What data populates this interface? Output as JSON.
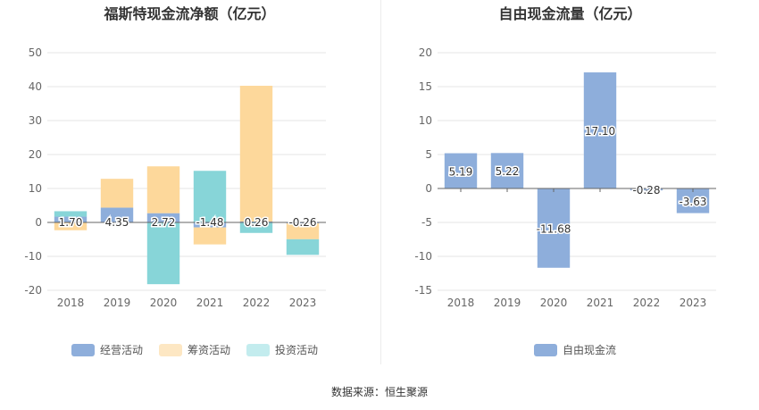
{
  "source_text": "数据来源：恒生聚源",
  "chart_data": [
    {
      "type": "bar",
      "stacked": true,
      "title": "福斯特现金流净额（亿元）",
      "categories": [
        "2018",
        "2019",
        "2020",
        "2021",
        "2022",
        "2023"
      ],
      "ylim": [
        -20,
        50
      ],
      "yticks": [
        -20,
        -10,
        0,
        10,
        20,
        30,
        40,
        50
      ],
      "grid": true,
      "legend": "bottom",
      "series": [
        {
          "name": "经营活动",
          "color": "#8eaedb",
          "values": [
            1.7,
            4.35,
            2.72,
            -1.48,
            0.26,
            -0.26
          ],
          "labels": [
            "1.70",
            "4.35",
            "2.72",
            "-1.48",
            "0.26",
            "-0.26"
          ]
        },
        {
          "name": "筹资活动",
          "color": "#fdd89b",
          "values": [
            -2.3,
            8.5,
            13.8,
            -5.0,
            40.0,
            -4.7
          ]
        },
        {
          "name": "投资活动",
          "color": "#87d5d8",
          "values": [
            1.6,
            0.0,
            -18.2,
            15.2,
            -3.1,
            -4.6
          ]
        }
      ]
    },
    {
      "type": "bar",
      "title": "自由现金流量（亿元）",
      "categories": [
        "2018",
        "2019",
        "2020",
        "2021",
        "2022",
        "2023"
      ],
      "ylim": [
        -15,
        20
      ],
      "yticks": [
        -15,
        -10,
        -5,
        0,
        5,
        10,
        15,
        20
      ],
      "grid": true,
      "legend": "bottom",
      "series": [
        {
          "name": "自由现金流",
          "color": "#8eaedb",
          "values": [
            5.19,
            5.22,
            -11.68,
            17.1,
            -0.28,
            -3.63
          ],
          "labels": [
            "5.19",
            "5.22",
            "-11.68",
            "17.10",
            "-0.28",
            "-3.63"
          ]
        }
      ]
    }
  ]
}
